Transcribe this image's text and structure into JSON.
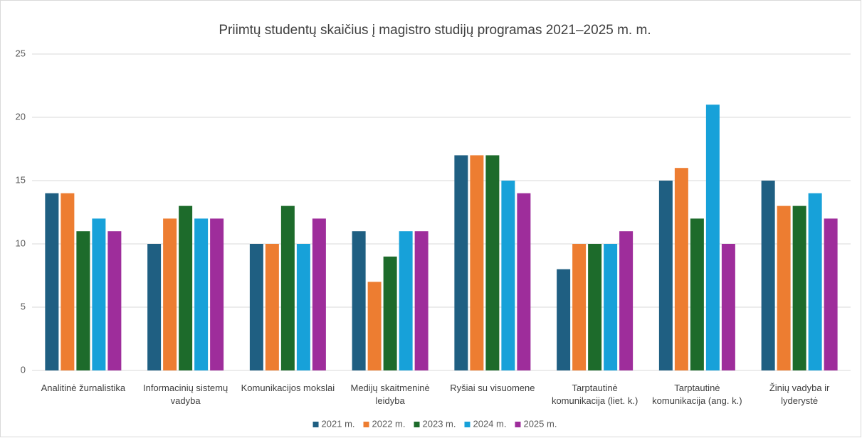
{
  "chart_data": {
    "type": "bar",
    "title": "Priimtų studentų skaičius į magistro studijų programas 2021–2025 m. m.",
    "categories": [
      "Analitinė žurnalistika",
      "Informacinių sistemų vadyba",
      "Komunikacijos mokslai",
      "Medijų skaitmeninė leidyba",
      "Ryšiai su visuomene",
      "Tarptautinė komunikacija (liet. k.)",
      "Tarptautinė komunikacija (ang. k.)",
      "Žinių vadyba ir lyderystė"
    ],
    "series": [
      {
        "name": "2021 m.",
        "color": "#1f5f82",
        "values": [
          14,
          10,
          10,
          11,
          17,
          8,
          15,
          15
        ]
      },
      {
        "name": "2022 m.",
        "color": "#ed7d31",
        "values": [
          14,
          12,
          10,
          7,
          17,
          10,
          16,
          13
        ]
      },
      {
        "name": "2023 m.",
        "color": "#1d6b2b",
        "values": [
          11,
          13,
          13,
          9,
          17,
          10,
          12,
          13
        ]
      },
      {
        "name": "2024 m.",
        "color": "#17a1d9",
        "values": [
          12,
          12,
          10,
          11,
          15,
          10,
          21,
          14
        ]
      },
      {
        "name": "2025 m.",
        "color": "#9e2d9b",
        "values": [
          11,
          12,
          12,
          11,
          14,
          11,
          10,
          12
        ]
      }
    ],
    "ylim": [
      0,
      25
    ],
    "yticks": [
      0,
      5,
      10,
      15,
      20,
      25
    ],
    "grid": true,
    "legend": "bottom"
  }
}
